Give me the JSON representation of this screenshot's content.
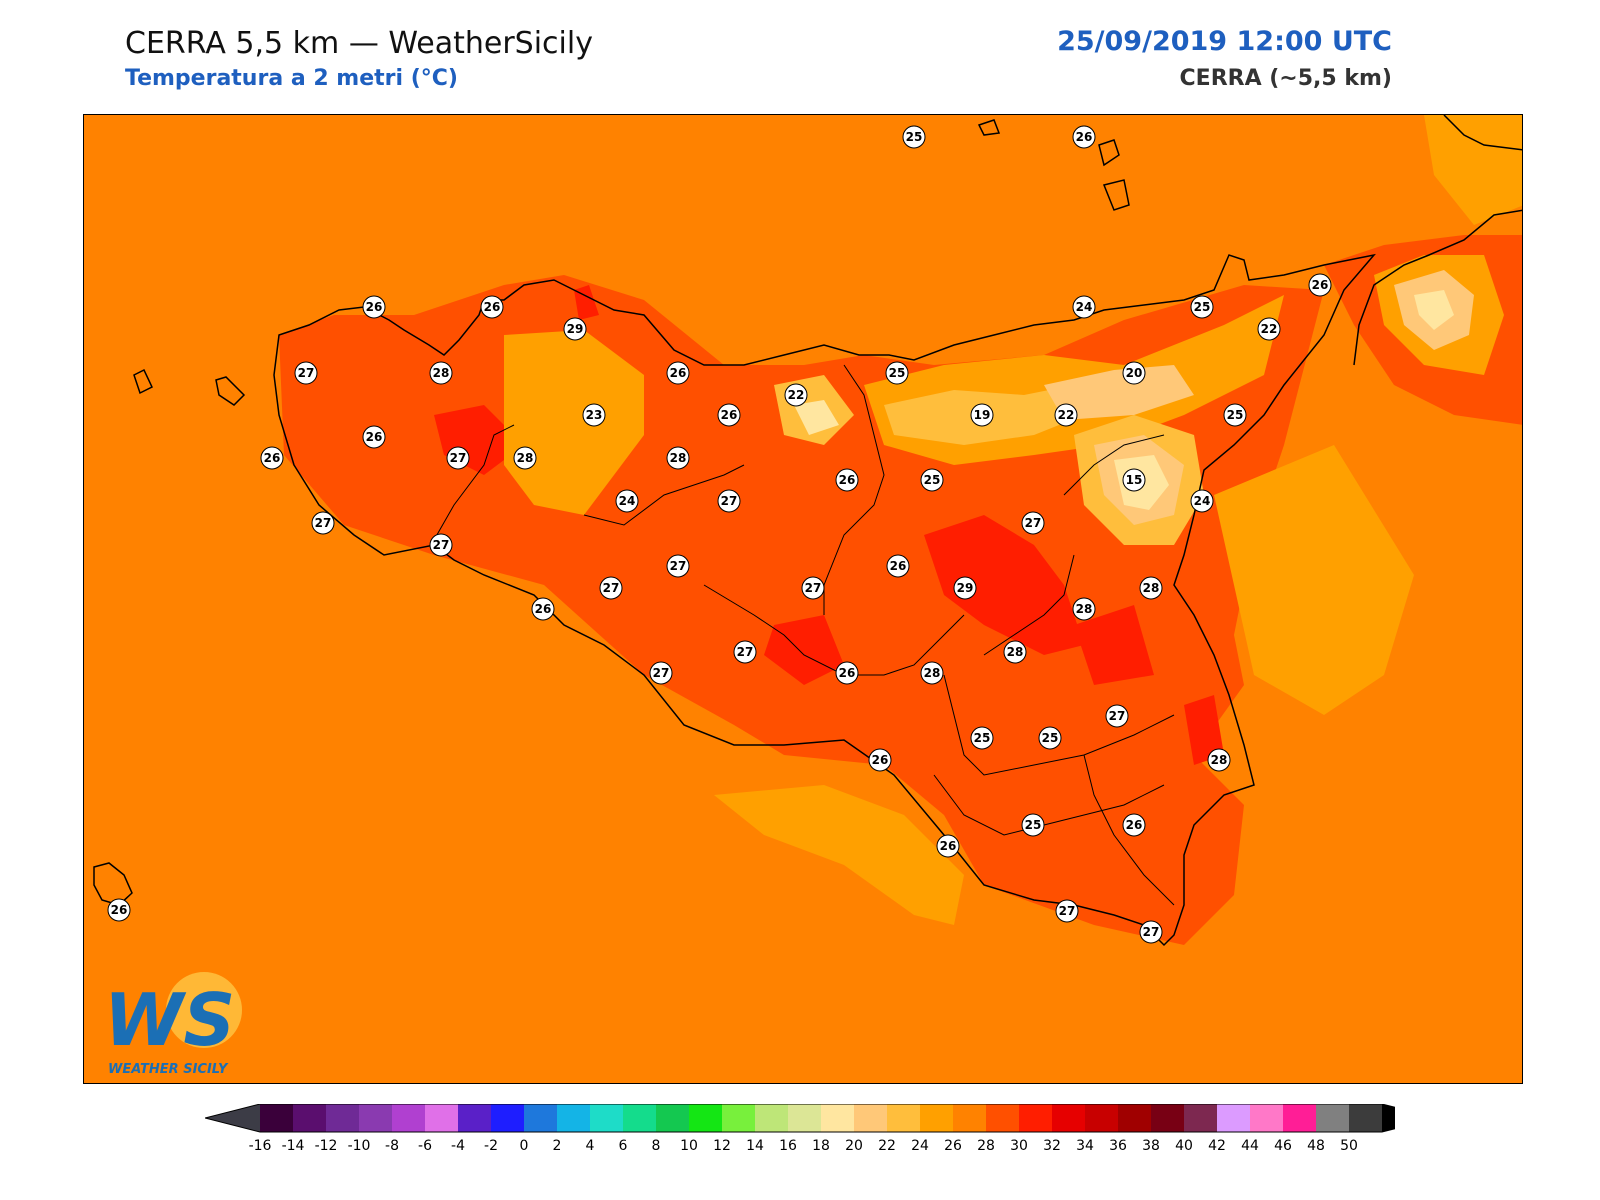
{
  "header": {
    "title": "CERRA 5,5 km — WeatherSicily",
    "subtitle": "Temperatura a 2 metri (°C)",
    "datetime": "25/09/2019 12:00 UTC",
    "model": "CERRA (~5,5 km)"
  },
  "logo": {
    "letters": "WS",
    "text": "WEATHER SICILY"
  },
  "colors": {
    "background_field": "#ff8200",
    "title_accent": "#1e5fbf"
  },
  "colorbar": {
    "ticks": [
      "-16",
      "-14",
      "-12",
      "-10",
      "-8",
      "-6",
      "-4",
      "-2",
      "0",
      "2",
      "4",
      "6",
      "8",
      "10",
      "12",
      "14",
      "16",
      "18",
      "20",
      "22",
      "24",
      "26",
      "28",
      "30",
      "32",
      "34",
      "36",
      "38",
      "40",
      "42",
      "44",
      "46",
      "48",
      "50"
    ],
    "colors": [
      "#3a003a",
      "#5a0e6e",
      "#6f2a96",
      "#8a3ab0",
      "#b040d0",
      "#e070e8",
      "#5a20c8",
      "#1e1eff",
      "#1e78dc",
      "#14b4e6",
      "#1edcc8",
      "#14dc8c",
      "#14c850",
      "#14e614",
      "#78f03c",
      "#bee678",
      "#dce696",
      "#ffe6a0",
      "#ffc878",
      "#ffbe3c",
      "#ffa000",
      "#ff8200",
      "#ff5000",
      "#ff1e00",
      "#e60000",
      "#c80000",
      "#a00000",
      "#780014",
      "#7d2850",
      "#dc9bff",
      "#ff78c8",
      "#ff1e96",
      "#808080",
      "#3c3c3c"
    ],
    "under_color": "#3c3c46",
    "over_color": "#000000"
  },
  "stations": [
    {
      "value": "25"
    },
    {
      "value": "26"
    },
    {
      "value": "26"
    },
    {
      "value": "26"
    },
    {
      "value": "29"
    },
    {
      "value": "27"
    },
    {
      "value": "28"
    },
    {
      "value": "26"
    },
    {
      "value": "22"
    },
    {
      "value": "25"
    },
    {
      "value": "24"
    },
    {
      "value": "25"
    },
    {
      "value": "22"
    },
    {
      "value": "26"
    },
    {
      "value": "20"
    },
    {
      "value": "23"
    },
    {
      "value": "26"
    },
    {
      "value": "26"
    },
    {
      "value": "19"
    },
    {
      "value": "22"
    },
    {
      "value": "25"
    },
    {
      "value": "26"
    },
    {
      "value": "27"
    },
    {
      "value": "28"
    },
    {
      "value": "28"
    },
    {
      "value": "26"
    },
    {
      "value": "25"
    },
    {
      "value": "15"
    },
    {
      "value": "24"
    },
    {
      "value": "27"
    },
    {
      "value": "24"
    },
    {
      "value": "27"
    },
    {
      "value": "27"
    },
    {
      "value": "27"
    },
    {
      "value": "27"
    },
    {
      "value": "26"
    },
    {
      "value": "27"
    },
    {
      "value": "29"
    },
    {
      "value": "28"
    },
    {
      "value": "28"
    },
    {
      "value": "26"
    },
    {
      "value": "27"
    },
    {
      "value": "27"
    },
    {
      "value": "28"
    },
    {
      "value": "26"
    },
    {
      "value": "28"
    },
    {
      "value": "27"
    },
    {
      "value": "25"
    },
    {
      "value": "25"
    },
    {
      "value": "27"
    },
    {
      "value": "28"
    },
    {
      "value": "26"
    },
    {
      "value": "26"
    },
    {
      "value": "25"
    },
    {
      "value": "26"
    },
    {
      "value": "27"
    },
    {
      "value": "27"
    },
    {
      "value": "26"
    }
  ]
}
